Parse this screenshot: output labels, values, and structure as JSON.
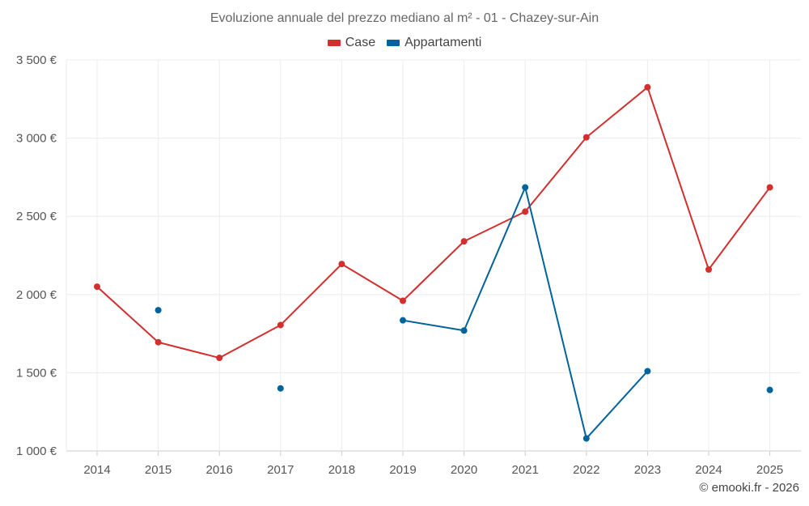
{
  "chart_data": {
    "type": "line",
    "title": "Evoluzione annuale del prezzo mediano al m² - 01 - Chazey-sur-Ain",
    "xlabel": "",
    "ylabel": "",
    "categories": [
      "2014",
      "2015",
      "2016",
      "2017",
      "2018",
      "2019",
      "2020",
      "2021",
      "2022",
      "2023",
      "2024",
      "2025"
    ],
    "ylim": [
      1000,
      3500
    ],
    "yticks": [
      1000,
      1500,
      2000,
      2500,
      3000,
      3500
    ],
    "ytick_labels": [
      "1 000 €",
      "1 500 €",
      "2 000 €",
      "2 500 €",
      "3 000 €",
      "3 500 €"
    ],
    "grid": true,
    "legend_position": "top-center",
    "series": [
      {
        "name": "Case",
        "color": "#d32f2f",
        "values": [
          2050,
          1695,
          1595,
          1805,
          2195,
          1960,
          2340,
          2530,
          3005,
          3325,
          2160,
          2685
        ]
      },
      {
        "name": "Appartamenti",
        "color": "#01639b",
        "values": [
          null,
          1900,
          null,
          1400,
          null,
          1835,
          1770,
          2685,
          1080,
          1510,
          null,
          1390
        ]
      }
    ]
  },
  "credit": "© emooki.fr - 2026"
}
